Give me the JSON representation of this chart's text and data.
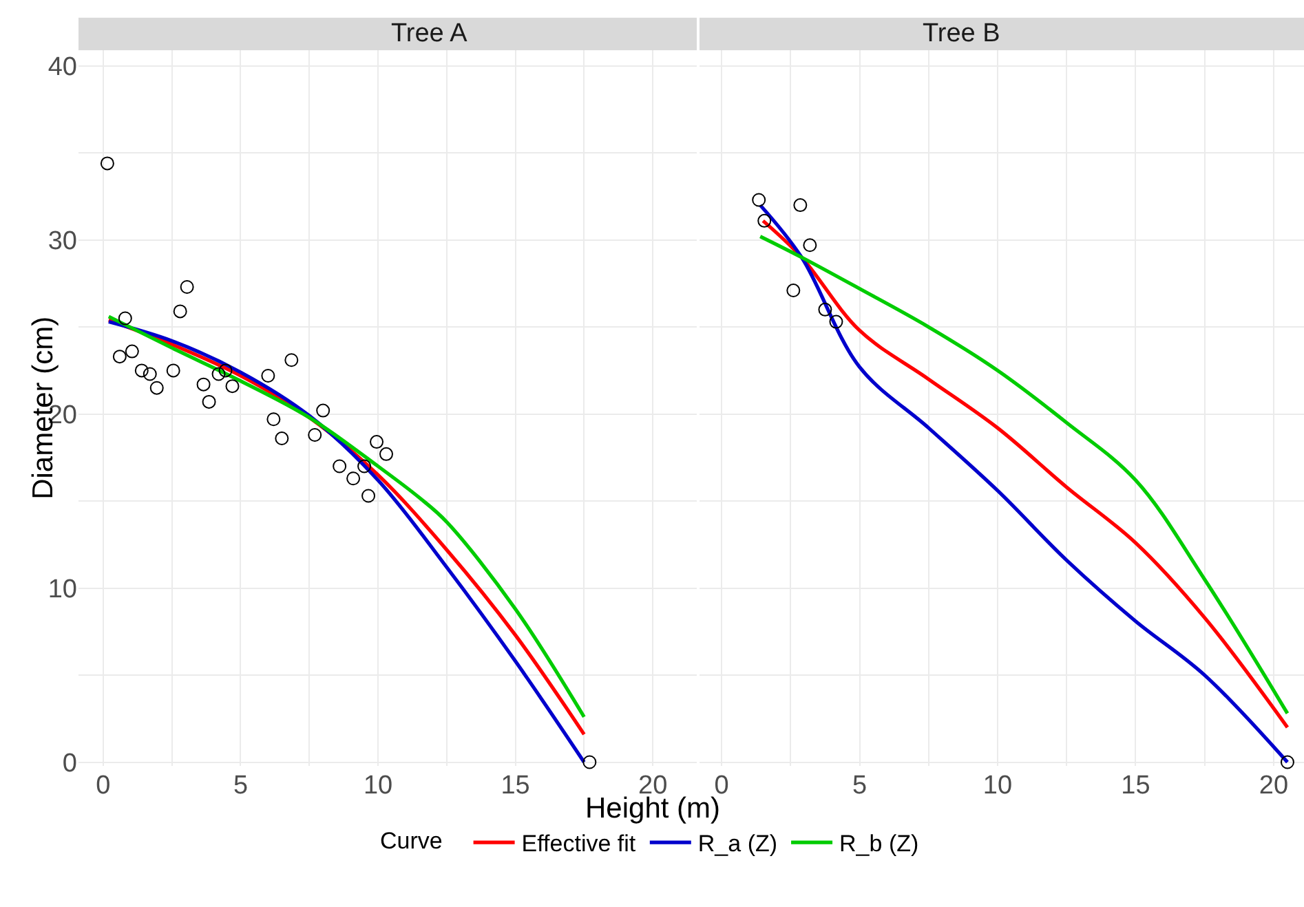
{
  "chart_data": [
    {
      "type": "scatter",
      "title": "Tree A",
      "xlabel": "Height (m)",
      "ylabel": "Diameter (cm)",
      "legend_title": "Curve",
      "legend": "bottom",
      "grid": true,
      "xlim": [
        -0.9,
        21.6
      ],
      "ylim": [
        -0.2,
        40.9
      ],
      "xticks": [
        0,
        {
          "value": 2.5,
          "label": null
        },
        5,
        {
          "value": 7.5,
          "label": null
        },
        10,
        {
          "value": 12.5,
          "label": null
        },
        15,
        {
          "value": 17.5,
          "label": null
        },
        20
      ],
      "yticks": [
        0,
        {
          "value": 5,
          "label": null
        },
        10,
        {
          "value": 15,
          "label": null
        },
        20,
        {
          "value": 25,
          "label": null
        },
        30,
        {
          "value": 35,
          "label": null
        },
        40
      ],
      "series": [
        {
          "marker": "circle",
          "color": "#000000",
          "x": [
            0.15,
            0.8,
            0.6,
            1.05,
            1.4,
            1.7,
            1.95,
            2.55,
            2.8,
            3.05,
            3.65,
            3.85,
            4.2,
            4.45,
            4.7,
            6.0,
            6.2,
            6.5,
            6.85,
            7.7,
            8.0,
            8.6,
            9.1,
            9.5,
            9.65,
            9.95,
            10.3,
            17.7
          ],
          "values": [
            34.4,
            25.5,
            23.3,
            23.6,
            22.5,
            22.3,
            21.5,
            22.5,
            25.9,
            27.3,
            21.7,
            20.7,
            22.3,
            22.5,
            21.6,
            22.2,
            19.7,
            18.6,
            23.1,
            18.8,
            20.2,
            17.0,
            16.3,
            17.0,
            15.3,
            18.4,
            17.7,
            0
          ]
        },
        {
          "type": "line",
          "name": "Effective fit",
          "color": "#ff0000",
          "x": [
            0.2,
            2.5,
            5,
            7.5,
            10,
            12.5,
            15,
            17.5
          ],
          "values": [
            25.4,
            24.0,
            22.2,
            19.8,
            16.5,
            12.2,
            7.3,
            1.6
          ]
        },
        {
          "type": "line",
          "name": "R_a (Z)",
          "color": "#0000cc",
          "x": [
            0.2,
            2.5,
            5,
            7.5,
            10,
            12.5,
            15,
            17.5
          ],
          "values": [
            25.3,
            24.2,
            22.4,
            19.9,
            16.2,
            11.2,
            5.8,
            0
          ]
        },
        {
          "type": "line",
          "name": "R_b (Z)",
          "color": "#00cc00",
          "x": [
            0.2,
            2.5,
            5,
            7.5,
            10,
            11.5,
            12.5,
            15,
            17.5
          ],
          "values": [
            25.6,
            23.8,
            21.9,
            19.8,
            17.0,
            15.2,
            13.8,
            8.8,
            2.6
          ]
        }
      ]
    },
    {
      "type": "scatter",
      "title": "Tree B",
      "grid": true,
      "tick_labels": "x",
      "xlim": [
        -0.8,
        21.1
      ],
      "ylim": [
        -0.2,
        40.9
      ],
      "xticks": [
        0,
        {
          "value": 2.5,
          "label": null
        },
        5,
        {
          "value": 7.5,
          "label": null
        },
        10,
        {
          "value": 12.5,
          "label": null
        },
        15,
        {
          "value": 17.5,
          "label": null
        },
        20
      ],
      "yticks": [
        0,
        {
          "value": 5,
          "label": null
        },
        10,
        {
          "value": 15,
          "label": null
        },
        20,
        {
          "value": 25,
          "label": null
        },
        30,
        {
          "value": 35,
          "label": null
        },
        40
      ],
      "series": [
        {
          "marker": "circle",
          "color": "#000000",
          "x": [
            1.35,
            1.55,
            2.6,
            2.85,
            3.2,
            3.75,
            4.15,
            20.5
          ],
          "values": [
            32.3,
            31.1,
            27.1,
            32.0,
            29.7,
            26.0,
            25.3,
            0
          ]
        },
        {
          "type": "line",
          "color": "#ff0000",
          "x": [
            1.5,
            2.9,
            5,
            7.5,
            10,
            12.5,
            15,
            17.5,
            20.5
          ],
          "values": [
            31.1,
            29.0,
            24.8,
            22.0,
            19.2,
            15.8,
            12.6,
            8.3,
            2.0
          ]
        },
        {
          "type": "line",
          "color": "#0000cc",
          "x": [
            1.4,
            2.9,
            5,
            7.5,
            10,
            12.5,
            15,
            17.5,
            20.5
          ],
          "values": [
            32.0,
            29.0,
            22.7,
            19.2,
            15.6,
            11.6,
            8.1,
            5.0,
            0
          ]
        },
        {
          "type": "line",
          "color": "#00cc00",
          "x": [
            1.4,
            2.9,
            5,
            7.5,
            10,
            12.5,
            15,
            17.5,
            20.5
          ],
          "values": [
            30.2,
            29.0,
            27.2,
            25.0,
            22.5,
            19.5,
            16.2,
            10.5,
            2.8
          ]
        }
      ]
    }
  ]
}
